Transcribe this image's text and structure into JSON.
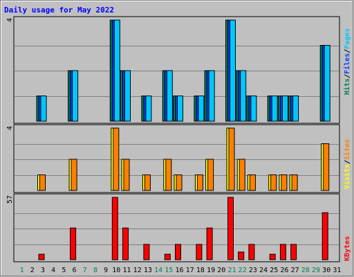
{
  "chart_data": {
    "type": "bar",
    "title": "Daily usage for May 2022",
    "colors": {
      "background": "#c0c0c0",
      "title": "#0000ff",
      "grid": "#808080",
      "hits": "#00805c",
      "files": "#0040ff",
      "pages": "#00c8ff",
      "visits": "#ffff00",
      "sites": "#ff8000",
      "kbytes": "#ff0000",
      "weekday_label": "#000000",
      "weekend_label": "#00805c"
    },
    "categories": [
      "1",
      "2",
      "3",
      "4",
      "5",
      "6",
      "7",
      "8",
      "9",
      "10",
      "11",
      "12",
      "13",
      "14",
      "15",
      "16",
      "17",
      "18",
      "19",
      "20",
      "21",
      "22",
      "23",
      "24",
      "25",
      "26",
      "27",
      "28",
      "29",
      "30",
      "31"
    ],
    "weekend_days": [
      "1",
      "7",
      "8",
      "14",
      "15",
      "21",
      "22",
      "28",
      "29"
    ],
    "panels": [
      {
        "id": "hits-files-pages",
        "ymax_label": "4",
        "ymax": 4,
        "legend": [
          {
            "text": "Hits",
            "color": "#00805c"
          },
          {
            "text": "/",
            "color": "#000000"
          },
          {
            "text": "Files",
            "color": "#0040ff"
          },
          {
            "text": "/",
            "color": "#000000"
          },
          {
            "text": "Pages",
            "color": "#00c8ff"
          }
        ],
        "series": [
          {
            "key": "hits",
            "color": "#00805c",
            "values": [
              0,
              0,
              1,
              0,
              0,
              2,
              0,
              0,
              0,
              4,
              2,
              0,
              1,
              0,
              2,
              1,
              0,
              1,
              2,
              0,
              4,
              2,
              1,
              0,
              1,
              1,
              1,
              0,
              0,
              3,
              0
            ]
          },
          {
            "key": "files",
            "color": "#0040ff",
            "values": [
              0,
              0,
              1,
              0,
              0,
              2,
              0,
              0,
              0,
              4,
              2,
              0,
              1,
              0,
              2,
              1,
              0,
              1,
              2,
              0,
              4,
              2,
              1,
              0,
              1,
              1,
              1,
              0,
              0,
              3,
              0
            ]
          },
          {
            "key": "pages",
            "color": "#00c8ff",
            "values": [
              0,
              0,
              1,
              0,
              0,
              2,
              0,
              0,
              0,
              4,
              2,
              0,
              1,
              0,
              2,
              1,
              0,
              1,
              2,
              0,
              4,
              2,
              1,
              0,
              1,
              1,
              1,
              0,
              0,
              3,
              0
            ]
          }
        ]
      },
      {
        "id": "visits-sites",
        "ymax_label": "4",
        "ymax": 4,
        "legend": [
          {
            "text": "Visits",
            "color": "#ffff00"
          },
          {
            "text": "/",
            "color": "#000000"
          },
          {
            "text": "Sites",
            "color": "#ff8000"
          }
        ],
        "series": [
          {
            "key": "visits",
            "color": "#ffff00",
            "values": [
              0,
              0,
              1,
              0,
              0,
              2,
              0,
              0,
              0,
              4,
              2,
              0,
              1,
              0,
              2,
              1,
              0,
              1,
              2,
              0,
              4,
              2,
              1,
              0,
              1,
              1,
              1,
              0,
              0,
              3,
              0
            ]
          },
          {
            "key": "sites",
            "color": "#ff8000",
            "values": [
              0,
              0,
              1,
              0,
              0,
              2,
              0,
              0,
              0,
              4,
              2,
              0,
              1,
              0,
              2,
              1,
              0,
              1,
              2,
              0,
              4,
              2,
              1,
              0,
              1,
              1,
              1,
              0,
              0,
              3,
              0
            ]
          }
        ]
      },
      {
        "id": "kbytes",
        "ymax_label": "57",
        "ymax": 57,
        "legend": [
          {
            "text": "KBytes",
            "color": "#ff0000"
          }
        ],
        "series": [
          {
            "key": "kbytes",
            "color": "#ff0000",
            "values": [
              0,
              0,
              5,
              0,
              0,
              29,
              0,
              0,
              0,
              57,
              29,
              0,
              14,
              0,
              5,
              14,
              0,
              14,
              29,
              0,
              57,
              7,
              14,
              0,
              5,
              14,
              14,
              0,
              0,
              43,
              0
            ]
          }
        ]
      }
    ]
  }
}
